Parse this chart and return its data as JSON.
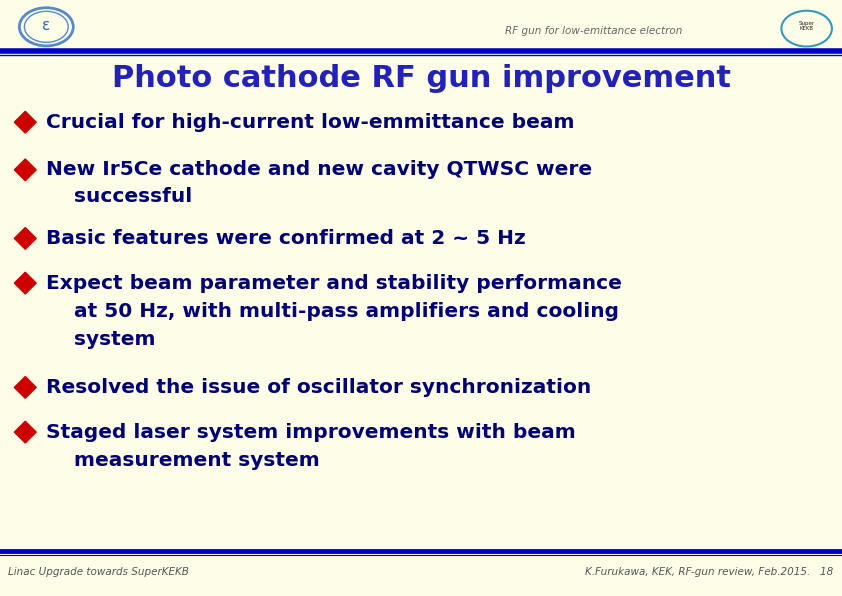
{
  "bg_color": "#FEFEE8",
  "header_line_color1": "#0000CC",
  "header_line_color2": "#0000CC",
  "header_text": "RF gun for low-emittance electron",
  "header_text_color": "#666666",
  "header_text_size": 7.5,
  "title": "Photo cathode RF gun improvement",
  "title_color": "#2222BB",
  "title_size": 22,
  "bullet_color": "#CC0000",
  "bullet_text_color": "#000077",
  "bullet_size": 14.5,
  "indent_text_color": "#000077",
  "bullets": [
    [
      "Crucial for high-current low-emmittance beam",
      false
    ],
    [
      "New Ir5Ce cathode and new cavity QTWSC were",
      false
    ],
    [
      "    successful",
      true
    ],
    [
      "Basic features were confirmed at 2 ~ 5 Hz",
      false
    ],
    [
      "Expect beam parameter and stability performance",
      false
    ],
    [
      "    at 50 Hz, with multi-pass amplifiers and cooling",
      true
    ],
    [
      "    system",
      true
    ],
    [
      "Resolved the issue of oscillator synchronization",
      false
    ],
    [
      "Staged laser system improvements with beam",
      false
    ],
    [
      "    measurement system",
      true
    ]
  ],
  "footer_left": "Linac Upgrade towards SuperKEKB",
  "footer_right": "K.Furukawa, KEK, RF-gun review, Feb.2015.   18",
  "footer_color": "#555555",
  "footer_size": 7.5,
  "footer_line_color": "#0000CC",
  "figw": 8.42,
  "figh": 5.96,
  "dpi": 100
}
